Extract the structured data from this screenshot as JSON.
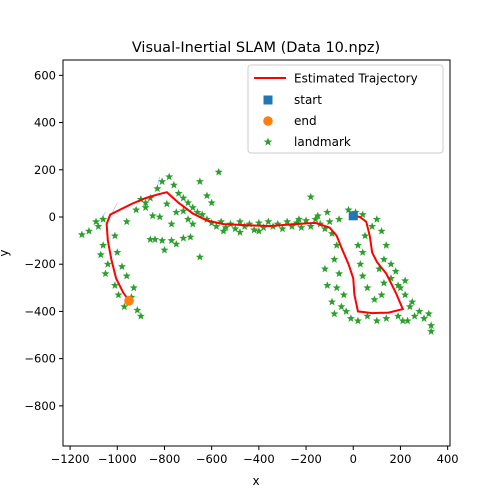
{
  "chart_data": {
    "type": "scatter",
    "title": "Visual-Inertial SLAM (Data 10.npz)",
    "xlabel": "x",
    "ylabel": "y",
    "xlim": [
      -1230,
      410
    ],
    "ylim": [
      -970,
      665
    ],
    "xticks": [
      -1200,
      -1000,
      -800,
      -600,
      -400,
      -200,
      0,
      200,
      400
    ],
    "yticks": [
      600,
      400,
      200,
      0,
      -200,
      -400,
      -600,
      -800
    ],
    "grid": false,
    "legend_position": "top-right",
    "colors": {
      "trajectory": "#ff0000",
      "start": "#1f77b4",
      "end": "#ff7f0e",
      "landmark": "#2ca02c",
      "orientation": "#6495ed"
    },
    "legend": [
      {
        "key": "trajectory",
        "label": "Estimated Trajectory",
        "marker": "line"
      },
      {
        "key": "start",
        "label": "start",
        "marker": "square"
      },
      {
        "key": "end",
        "label": "end",
        "marker": "circle"
      },
      {
        "key": "landmark",
        "label": "landmark",
        "marker": "star"
      }
    ],
    "start": {
      "x": 0,
      "y": 5
    },
    "end": {
      "x": -950,
      "y": -355
    },
    "trajectory": [
      [
        0,
        5
      ],
      [
        28,
        0
      ],
      [
        55,
        -20
      ],
      [
        70,
        -80
      ],
      [
        80,
        -150
      ],
      [
        100,
        -190
      ],
      [
        140,
        -240
      ],
      [
        180,
        -320
      ],
      [
        210,
        -390
      ],
      [
        150,
        -405
      ],
      [
        80,
        -407
      ],
      [
        20,
        -400
      ],
      [
        5,
        -330
      ],
      [
        0,
        -260
      ],
      [
        -20,
        -200
      ],
      [
        -50,
        -130
      ],
      [
        -70,
        -80
      ],
      [
        -100,
        -45
      ],
      [
        -160,
        -25
      ],
      [
        -250,
        -30
      ],
      [
        -350,
        -38
      ],
      [
        -450,
        -35
      ],
      [
        -550,
        -30
      ],
      [
        -620,
        -15
      ],
      [
        -680,
        15
      ],
      [
        -740,
        60
      ],
      [
        -790,
        105
      ],
      [
        -830,
        95
      ],
      [
        -880,
        80
      ],
      [
        -940,
        55
      ],
      [
        -990,
        30
      ],
      [
        -1030,
        10
      ],
      [
        -1045,
        -30
      ],
      [
        -1040,
        -100
      ],
      [
        -1025,
        -180
      ],
      [
        -1005,
        -260
      ],
      [
        -975,
        -320
      ],
      [
        -950,
        -355
      ]
    ],
    "landmarks": [
      [
        -1080,
        -40
      ],
      [
        -1120,
        -60
      ],
      [
        -1150,
        -75
      ],
      [
        -1090,
        -20
      ],
      [
        -1060,
        -10
      ],
      [
        -1010,
        -80
      ],
      [
        -1000,
        -150
      ],
      [
        -1060,
        -120
      ],
      [
        -980,
        -210
      ],
      [
        -1040,
        -200
      ],
      [
        -960,
        -250
      ],
      [
        -1010,
        -290
      ],
      [
        -930,
        -300
      ],
      [
        -970,
        -380
      ],
      [
        -900,
        -420
      ],
      [
        -915,
        -395
      ],
      [
        -995,
        -330
      ],
      [
        -1070,
        -160
      ],
      [
        -1050,
        -240
      ],
      [
        -940,
        -340
      ],
      [
        -960,
        -20
      ],
      [
        -920,
        30
      ],
      [
        -880,
        40
      ],
      [
        -860,
        80
      ],
      [
        -830,
        120
      ],
      [
        -810,
        150
      ],
      [
        -780,
        170
      ],
      [
        -760,
        135
      ],
      [
        -740,
        100
      ],
      [
        -720,
        80
      ],
      [
        -700,
        60
      ],
      [
        -680,
        40
      ],
      [
        -660,
        20
      ],
      [
        -640,
        10
      ],
      [
        -620,
        -10
      ],
      [
        -600,
        -25
      ],
      [
        -580,
        -40
      ],
      [
        -560,
        -20
      ],
      [
        -540,
        -45
      ],
      [
        -520,
        -30
      ],
      [
        -500,
        -50
      ],
      [
        -480,
        -20
      ],
      [
        -460,
        -40
      ],
      [
        -440,
        -30
      ],
      [
        -420,
        -55
      ],
      [
        -400,
        -25
      ],
      [
        -380,
        -45
      ],
      [
        -360,
        -20
      ],
      [
        -340,
        -40
      ],
      [
        -320,
        -30
      ],
      [
        -300,
        -50
      ],
      [
        -280,
        -20
      ],
      [
        -260,
        -40
      ],
      [
        -240,
        -25
      ],
      [
        -220,
        -45
      ],
      [
        -200,
        -15
      ],
      [
        -180,
        -40
      ],
      [
        -160,
        -10
      ],
      [
        -140,
        -30
      ],
      [
        -120,
        -50
      ],
      [
        -100,
        -20
      ],
      [
        -180,
        85
      ],
      [
        -570,
        190
      ],
      [
        -650,
        150
      ],
      [
        -840,
        -95
      ],
      [
        -860,
        -95
      ],
      [
        -810,
        -100
      ],
      [
        -800,
        -140
      ],
      [
        -770,
        -100
      ],
      [
        -720,
        -90
      ],
      [
        -750,
        -115
      ],
      [
        -690,
        -85
      ],
      [
        -650,
        -170
      ],
      [
        -880,
        60
      ],
      [
        -900,
        75
      ],
      [
        -790,
        55
      ],
      [
        -750,
        20
      ],
      [
        -770,
        -30
      ],
      [
        -720,
        25
      ],
      [
        -700,
        -10
      ],
      [
        -820,
        0
      ],
      [
        -850,
        5
      ],
      [
        -680,
        -30
      ],
      [
        -620,
        90
      ],
      [
        -600,
        60
      ],
      [
        -90,
        -70
      ],
      [
        -70,
        -120
      ],
      [
        -80,
        -180
      ],
      [
        -60,
        -240
      ],
      [
        -120,
        -220
      ],
      [
        -110,
        -290
      ],
      [
        -70,
        -300
      ],
      [
        -40,
        -330
      ],
      [
        -90,
        -360
      ],
      [
        -50,
        -380
      ],
      [
        -80,
        -410
      ],
      [
        -30,
        -400
      ],
      [
        -10,
        -430
      ],
      [
        20,
        -440
      ],
      [
        60,
        -420
      ],
      [
        100,
        -440
      ],
      [
        140,
        -430
      ],
      [
        190,
        -420
      ],
      [
        230,
        -440
      ],
      [
        260,
        -420
      ],
      [
        240,
        -380
      ],
      [
        220,
        -330
      ],
      [
        190,
        -290
      ],
      [
        160,
        -260
      ],
      [
        130,
        -280
      ],
      [
        120,
        -330
      ],
      [
        90,
        -350
      ],
      [
        60,
        -300
      ],
      [
        40,
        -250
      ],
      [
        30,
        -200
      ],
      [
        40,
        -150
      ],
      [
        20,
        -120
      ],
      [
        50,
        -80
      ],
      [
        80,
        -40
      ],
      [
        100,
        -10
      ],
      [
        120,
        -60
      ],
      [
        140,
        -120
      ],
      [
        130,
        -180
      ],
      [
        110,
        -220
      ],
      [
        160,
        -200
      ],
      [
        180,
        -230
      ],
      [
        200,
        -300
      ],
      [
        220,
        -270
      ],
      [
        250,
        -360
      ],
      [
        280,
        -400
      ],
      [
        300,
        -430
      ],
      [
        320,
        -410
      ],
      [
        330,
        -460
      ],
      [
        330,
        -485
      ],
      [
        210,
        -440
      ],
      [
        -60,
        -10
      ],
      [
        -20,
        30
      ],
      [
        10,
        20
      ],
      [
        40,
        10
      ],
      [
        -110,
        20
      ],
      [
        -150,
        5
      ],
      [
        -230,
        -10
      ],
      [
        -400,
        -60
      ],
      [
        -480,
        -65
      ],
      [
        -550,
        -60
      ]
    ],
    "orientation_fan": [
      [
        -1045,
        -30
      ],
      [
        -1000,
        60
      ],
      [
        -1080,
        -20
      ],
      [
        -1050,
        20
      ],
      [
        -820,
        170
      ],
      [
        -830,
        130
      ]
    ]
  }
}
